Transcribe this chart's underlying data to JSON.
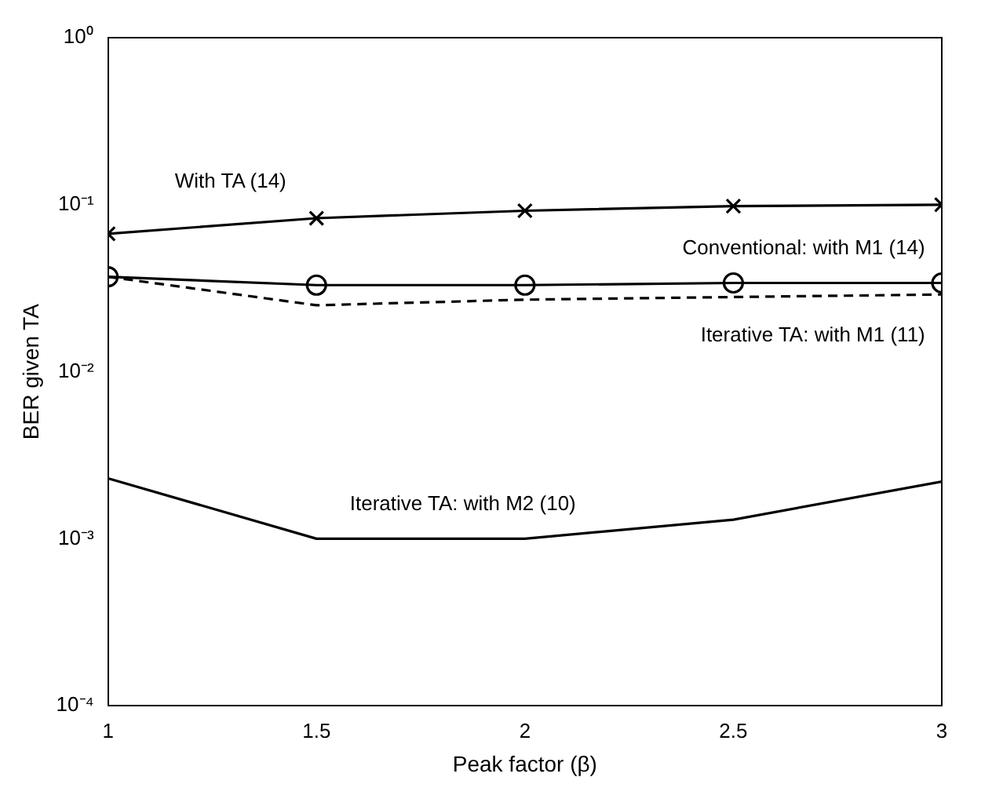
{
  "chart_data": {
    "type": "line",
    "xlabel": "Peak factor (β)",
    "ylabel": "BER given TA",
    "x": [
      1,
      1.5,
      2,
      2.5,
      3
    ],
    "series": [
      {
        "name": "With TA (14)",
        "color": "#000000",
        "marker": "cross",
        "line_style": "solid",
        "values": [
          0.067,
          0.083,
          0.092,
          0.098,
          0.1
        ]
      },
      {
        "name": "Conventional: with M1 (14)",
        "color": "#000000",
        "marker": "circle",
        "line_style": "solid",
        "values": [
          0.037,
          0.033,
          0.033,
          0.034,
          0.034
        ]
      },
      {
        "name": "Iterative TA: with M1 (11)",
        "color": "#000000",
        "marker": "none",
        "line_style": "dashed",
        "values": [
          0.037,
          0.025,
          0.027,
          0.028,
          0.029
        ]
      },
      {
        "name": "Iterative TA: with M2 (10)",
        "color": "#000000",
        "marker": "none",
        "line_style": "solid",
        "values": [
          0.0023,
          0.001,
          0.001,
          0.0013,
          0.0022
        ]
      }
    ],
    "log": "y",
    "xlim": [
      1,
      3
    ],
    "xticks": [
      1,
      1.5,
      2,
      2.5,
      3
    ],
    "ylim": [
      0.0001,
      1
    ],
    "yticks": [
      {
        "value": 0.0001,
        "label": "10⁻⁴"
      },
      {
        "value": 0.001,
        "label": "10⁻³"
      },
      {
        "value": 0.01,
        "label": "10⁻²"
      },
      {
        "value": 0.1,
        "label": "10⁻¹"
      },
      {
        "value": 1,
        "label": "10⁰"
      }
    ],
    "grid": false,
    "legend": false
  }
}
